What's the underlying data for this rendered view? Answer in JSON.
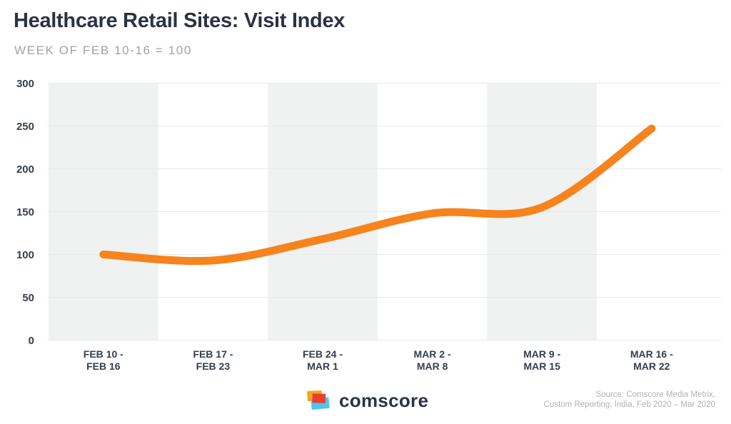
{
  "chart_data": {
    "type": "line",
    "title": "Healthcare Retail Sites: Visit Index",
    "subtitle": "WEEK OF FEB 10-16 = 100",
    "categories": [
      [
        "FEB 10 -",
        "FEB 16"
      ],
      [
        "FEB 17 -",
        "FEB 23"
      ],
      [
        "FEB 24 -",
        "MAR 1"
      ],
      [
        "MAR 2 -",
        "MAR 8"
      ],
      [
        "MAR 9 -",
        "MAR 15"
      ],
      [
        "MAR 16 -",
        "MAR 22"
      ]
    ],
    "values": [
      100,
      93,
      118,
      148,
      155,
      247
    ],
    "xlabel": "",
    "ylabel": "",
    "ylim": [
      0,
      300
    ],
    "yticks": [
      0,
      50,
      100,
      150,
      200,
      250,
      300
    ],
    "grid": true,
    "legend": false,
    "line_color": "#F6831D",
    "band_color": "#F0F1F1",
    "alternating_column_bands": true
  },
  "footer": {
    "logo_text": "comscore",
    "source_line1": "Source: Comscore Media Metrix,",
    "source_line2": "Custom Reporting, India, Feb 2020 – Mar 2020"
  },
  "colors": {
    "title_text": "#2A3340",
    "subtitle_text": "#9EA3A9",
    "axis_text": "#333F4D",
    "gridline": "#E9EAEA",
    "source_text": "#B2B2B4",
    "logo_orange": "#F9A21C",
    "logo_red": "#E6402F",
    "logo_cyan": "#4FC5E8",
    "logo_wordmark": "#2B3547"
  }
}
